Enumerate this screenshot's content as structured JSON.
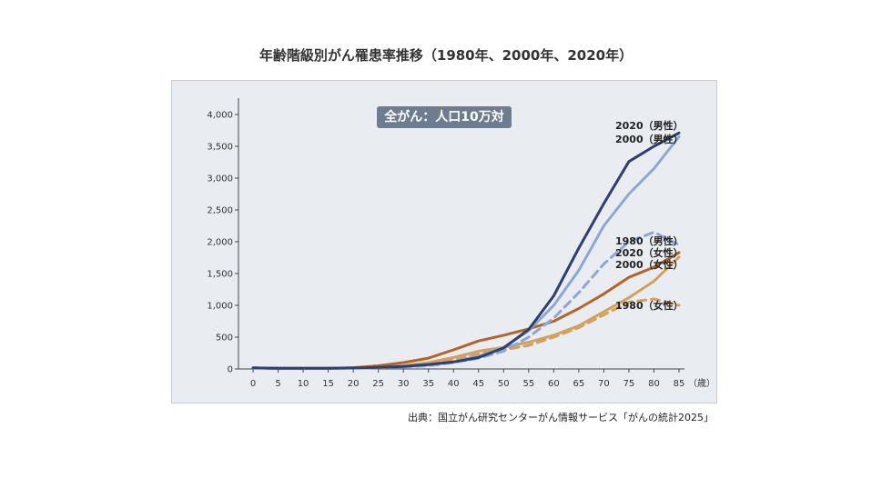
{
  "title": "年齢階級別がん罹患率推移（1980年、2000年、2020年）",
  "badge": "全がん：人口10万対",
  "source": "出典：国立がん研究センターがん情報サービス「がんの統計2025」",
  "chart_data": {
    "type": "line",
    "x": [
      0,
      5,
      10,
      15,
      20,
      25,
      30,
      35,
      40,
      45,
      50,
      55,
      60,
      65,
      70,
      75,
      80,
      85
    ],
    "x_unit_label": "（歳）",
    "xlim": [
      0,
      85
    ],
    "ylim": [
      0,
      4000
    ],
    "y_ticks": [
      "0",
      "500",
      "1,000",
      "1,500",
      "2,000",
      "2,500",
      "3,000",
      "3,500",
      "4,000"
    ],
    "y_tick_values": [
      0,
      500,
      1000,
      1500,
      2000,
      2500,
      3000,
      3500,
      4000
    ],
    "grid": false,
    "legend": "inline labels at line ends (right)",
    "series": [
      {
        "name": "2020（男性）",
        "color": "#2f3f6e",
        "style": "solid",
        "values": [
          15,
          10,
          10,
          12,
          15,
          25,
          40,
          70,
          110,
          180,
          330,
          620,
          1150,
          1900,
          2600,
          3260,
          3500,
          3710
        ]
      },
      {
        "name": "2000（男性）",
        "color": "#8ea6d2",
        "style": "solid",
        "values": [
          15,
          10,
          10,
          12,
          15,
          20,
          35,
          60,
          110,
          200,
          340,
          600,
          1000,
          1550,
          2250,
          2750,
          3150,
          3650
        ]
      },
      {
        "name": "1980（男性）",
        "color": "#8ea6d2",
        "style": "dashed",
        "values": [
          15,
          10,
          10,
          12,
          15,
          20,
          30,
          50,
          100,
          170,
          280,
          500,
          800,
          1200,
          1650,
          2000,
          2150,
          1950
        ]
      },
      {
        "name": "2020（女性）",
        "color": "#b4642a",
        "style": "solid",
        "values": [
          15,
          10,
          10,
          12,
          20,
          50,
          100,
          170,
          300,
          440,
          530,
          630,
          750,
          950,
          1180,
          1440,
          1600,
          1830
        ]
      },
      {
        "name": "2000（女性）",
        "color": "#d4a060",
        "style": "solid",
        "values": [
          15,
          10,
          10,
          12,
          15,
          25,
          50,
          100,
          180,
          280,
          340,
          420,
          530,
          680,
          900,
          1120,
          1380,
          1760
        ]
      },
      {
        "name": "1980（女性）",
        "color": "#d4a060",
        "style": "dashed",
        "values": [
          15,
          10,
          10,
          12,
          15,
          20,
          40,
          80,
          150,
          240,
          300,
          370,
          500,
          650,
          850,
          1050,
          1100,
          1000
        ]
      }
    ]
  }
}
